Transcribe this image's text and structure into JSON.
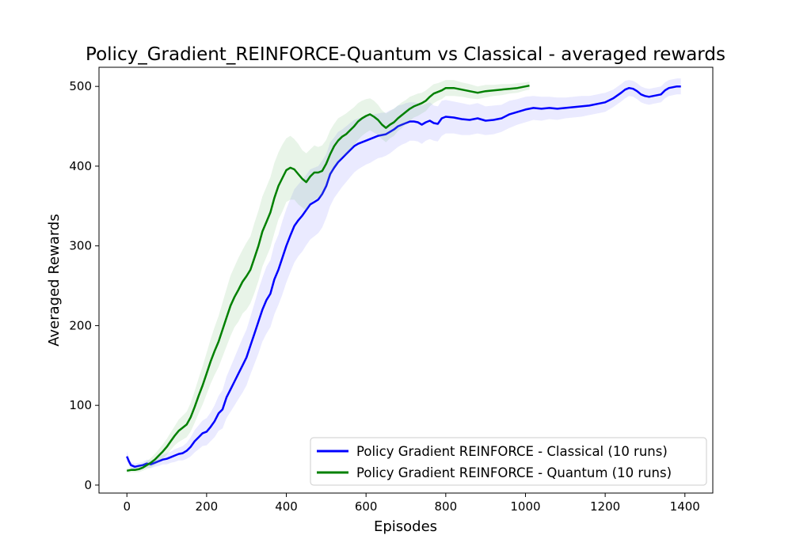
{
  "chart_data": {
    "type": "line",
    "title": "Policy_Gradient_REINFORCE-Quantum vs Classical - averaged rewards",
    "xlabel": "Episodes",
    "ylabel": "Averaged Rewards",
    "xlim": [
      -70,
      1470
    ],
    "ylim": [
      -10,
      524
    ],
    "xticks": [
      0,
      200,
      400,
      600,
      800,
      1000,
      1200,
      1400
    ],
    "yticks": [
      0,
      100,
      200,
      300,
      400,
      500
    ],
    "grid": false,
    "legend_position": "lower right",
    "series": [
      {
        "name": "Policy Gradient REINFORCE - Classical (10 runs)",
        "color": "#0000ff",
        "band_color": "#8888ff",
        "x": [
          0,
          5,
          10,
          20,
          30,
          40,
          50,
          60,
          70,
          80,
          90,
          100,
          110,
          120,
          130,
          140,
          150,
          160,
          170,
          180,
          190,
          200,
          210,
          220,
          230,
          240,
          250,
          260,
          270,
          280,
          290,
          300,
          310,
          320,
          330,
          340,
          350,
          360,
          370,
          380,
          390,
          400,
          410,
          420,
          430,
          440,
          450,
          460,
          470,
          480,
          490,
          500,
          510,
          520,
          530,
          540,
          550,
          560,
          570,
          580,
          590,
          600,
          610,
          620,
          630,
          640,
          650,
          660,
          670,
          680,
          690,
          700,
          710,
          720,
          730,
          740,
          750,
          760,
          770,
          780,
          790,
          800,
          820,
          840,
          860,
          880,
          900,
          920,
          940,
          960,
          980,
          1000,
          1020,
          1040,
          1060,
          1080,
          1100,
          1120,
          1140,
          1160,
          1180,
          1200,
          1220,
          1240,
          1250,
          1260,
          1270,
          1280,
          1290,
          1300,
          1310,
          1320,
          1330,
          1340,
          1350,
          1360,
          1370,
          1380,
          1390
        ],
        "values": [
          36,
          30,
          25,
          23,
          24,
          25,
          27,
          26,
          28,
          30,
          32,
          33,
          35,
          37,
          39,
          40,
          43,
          48,
          55,
          60,
          65,
          67,
          73,
          80,
          90,
          95,
          110,
          120,
          130,
          140,
          150,
          160,
          175,
          190,
          205,
          220,
          232,
          240,
          258,
          270,
          285,
          300,
          313,
          325,
          332,
          338,
          345,
          352,
          355,
          358,
          365,
          375,
          390,
          398,
          405,
          410,
          415,
          420,
          425,
          428,
          430,
          432,
          434,
          436,
          438,
          439,
          440,
          443,
          446,
          450,
          452,
          454,
          456,
          456,
          455,
          452,
          455,
          457,
          454,
          453,
          460,
          462,
          461,
          459,
          458,
          460,
          457,
          458,
          460,
          465,
          468,
          471,
          473,
          472,
          473,
          472,
          473,
          474,
          475,
          476,
          478,
          480,
          485,
          492,
          496,
          498,
          497,
          494,
          490,
          488,
          487,
          488,
          489,
          490,
          495,
          498,
          499,
          500,
          500
        ],
        "spread": [
          6,
          5,
          4,
          4,
          4,
          4,
          5,
          5,
          5,
          6,
          6,
          7,
          7,
          8,
          8,
          9,
          10,
          12,
          14,
          15,
          16,
          17,
          18,
          20,
          22,
          24,
          26,
          28,
          30,
          32,
          34,
          35,
          36,
          38,
          40,
          40,
          42,
          42,
          44,
          44,
          46,
          46,
          46,
          46,
          45,
          45,
          44,
          44,
          43,
          42,
          42,
          40,
          40,
          38,
          38,
          36,
          35,
          34,
          33,
          32,
          31,
          30,
          30,
          29,
          28,
          28,
          27,
          27,
          26,
          26,
          25,
          25,
          24,
          24,
          24,
          24,
          23,
          23,
          22,
          22,
          22,
          21,
          20,
          20,
          19,
          19,
          18,
          18,
          17,
          17,
          16,
          16,
          15,
          15,
          14,
          14,
          13,
          13,
          13,
          12,
          12,
          12,
          11,
          11,
          11,
          10,
          10,
          10,
          10,
          10,
          10,
          10,
          10,
          10,
          10,
          10,
          10,
          10,
          10
        ]
      },
      {
        "name": "Policy Gradient REINFORCE - Quantum (10 runs)",
        "color": "#008000",
        "band_color": "#80c080",
        "x": [
          0,
          10,
          20,
          30,
          40,
          50,
          60,
          70,
          80,
          90,
          100,
          110,
          120,
          130,
          140,
          150,
          160,
          170,
          180,
          190,
          200,
          210,
          220,
          230,
          240,
          250,
          260,
          270,
          280,
          290,
          300,
          310,
          320,
          330,
          340,
          350,
          360,
          370,
          380,
          390,
          400,
          410,
          420,
          430,
          440,
          450,
          460,
          470,
          480,
          490,
          500,
          510,
          520,
          530,
          540,
          550,
          560,
          570,
          580,
          590,
          600,
          610,
          620,
          630,
          640,
          650,
          660,
          670,
          680,
          690,
          700,
          710,
          720,
          730,
          740,
          750,
          760,
          770,
          780,
          790,
          800,
          820,
          840,
          860,
          880,
          900,
          920,
          940,
          960,
          980,
          1000,
          1010
        ],
        "values": [
          18,
          19,
          19,
          20,
          22,
          25,
          28,
          32,
          37,
          42,
          48,
          55,
          62,
          68,
          72,
          76,
          85,
          98,
          112,
          125,
          140,
          155,
          168,
          180,
          195,
          210,
          225,
          236,
          245,
          255,
          262,
          270,
          285,
          300,
          318,
          330,
          342,
          360,
          375,
          385,
          395,
          398,
          396,
          390,
          384,
          380,
          387,
          392,
          392,
          394,
          403,
          415,
          425,
          432,
          437,
          440,
          445,
          450,
          456,
          460,
          463,
          465,
          462,
          458,
          452,
          448,
          452,
          455,
          460,
          464,
          468,
          472,
          475,
          477,
          479,
          482,
          487,
          491,
          493,
          495,
          498,
          498,
          496,
          494,
          492,
          494,
          495,
          496,
          497,
          498,
          500,
          501
        ],
        "spread": [
          3,
          3,
          3,
          4,
          4,
          5,
          6,
          7,
          8,
          9,
          10,
          11,
          12,
          14,
          15,
          16,
          18,
          20,
          22,
          24,
          26,
          28,
          30,
          32,
          34,
          36,
          38,
          38,
          40,
          40,
          42,
          42,
          44,
          44,
          44,
          44,
          44,
          44,
          42,
          42,
          40,
          40,
          38,
          38,
          36,
          36,
          34,
          34,
          32,
          32,
          30,
          30,
          28,
          28,
          26,
          26,
          25,
          24,
          23,
          22,
          21,
          20,
          20,
          19,
          18,
          18,
          17,
          17,
          16,
          16,
          15,
          15,
          14,
          14,
          13,
          13,
          12,
          12,
          11,
          11,
          10,
          10,
          9,
          9,
          8,
          8,
          7,
          7,
          6,
          6,
          5,
          5
        ]
      }
    ]
  }
}
